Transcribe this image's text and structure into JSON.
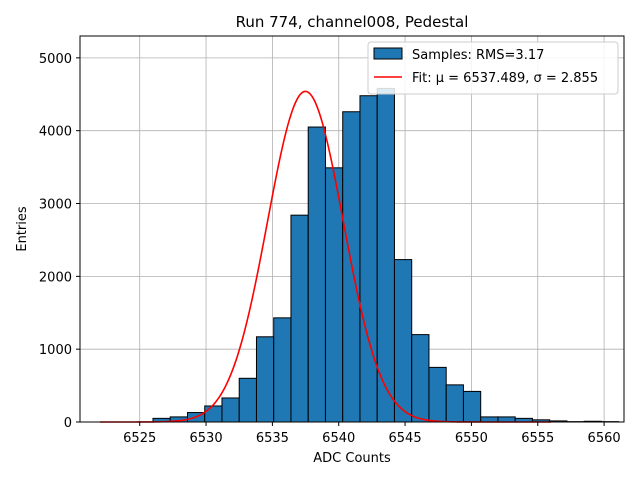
{
  "chart_data": {
    "type": "bar",
    "title": "Run 774, channel008, Pedestal",
    "xlabel": "ADC Counts",
    "ylabel": "Entries",
    "xlim": [
      6520.5,
      6561.5
    ],
    "ylim": [
      0,
      5300
    ],
    "xticks": [
      6525,
      6530,
      6535,
      6540,
      6545,
      6550,
      6555,
      6560
    ],
    "yticks": [
      0,
      1000,
      2000,
      3000,
      4000,
      5000
    ],
    "grid": true,
    "legend_position": "top-right",
    "bin_width": 1.3,
    "bin_start": 6526.0,
    "series": [
      {
        "name": "Samples: RMS=3.17",
        "kind": "histogram",
        "color": "#1f77b4",
        "edge_color": "#000000",
        "values": [
          50,
          70,
          130,
          220,
          330,
          600,
          1170,
          1430,
          2840,
          4050,
          3490,
          4260,
          4480,
          4580,
          2230,
          1200,
          750,
          510,
          420,
          70,
          70,
          50,
          30,
          15,
          5,
          10,
          5
        ]
      },
      {
        "name": "Fit: μ = 6537.489, σ = 2.855",
        "kind": "gaussian_fit",
        "color": "#ff0000",
        "mu": 6537.489,
        "sigma": 2.855,
        "amplitude": 4540,
        "x_range": [
          6522,
          6556
        ]
      }
    ]
  }
}
